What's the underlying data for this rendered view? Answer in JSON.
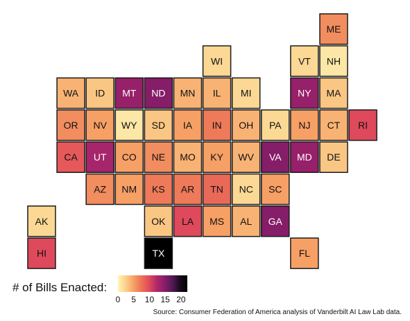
{
  "chart_data": {
    "type": "heatmap",
    "subtype": "state-tile-grid-map",
    "legend": {
      "title": "# of Bills Enacted:",
      "range": [
        0,
        22
      ],
      "ticks": [
        0,
        5,
        10,
        15,
        20
      ],
      "colors": [
        "#fdf6b8",
        "#fbd18c",
        "#f7a266",
        "#ec7457",
        "#e24c5b",
        "#b3296a",
        "#8c1d6a",
        "#551a5a",
        "#1b0c1d",
        "#000000"
      ]
    },
    "source": "Source: Consumer Federation of America analysis of Vanderbilt AI Law Lab data.",
    "states": [
      {
        "abbr": "ME",
        "col": 10,
        "row": 0,
        "value": 6
      },
      {
        "abbr": "WI",
        "col": 6,
        "row": 1,
        "value": 2
      },
      {
        "abbr": "VT",
        "col": 9,
        "row": 1,
        "value": 2
      },
      {
        "abbr": "NH",
        "col": 10,
        "row": 1,
        "value": 1
      },
      {
        "abbr": "WA",
        "col": 1,
        "row": 2,
        "value": 4
      },
      {
        "abbr": "ID",
        "col": 2,
        "row": 2,
        "value": 3
      },
      {
        "abbr": "MT",
        "col": 3,
        "row": 2,
        "value": 14
      },
      {
        "abbr": "ND",
        "col": 4,
        "row": 2,
        "value": 15
      },
      {
        "abbr": "MN",
        "col": 5,
        "row": 2,
        "value": 4
      },
      {
        "abbr": "IL",
        "col": 6,
        "row": 2,
        "value": 4
      },
      {
        "abbr": "MI",
        "col": 7,
        "row": 2,
        "value": 2
      },
      {
        "abbr": "NY",
        "col": 9,
        "row": 2,
        "value": 14
      },
      {
        "abbr": "MA",
        "col": 10,
        "row": 2,
        "value": 3
      },
      {
        "abbr": "OR",
        "col": 1,
        "row": 3,
        "value": 6
      },
      {
        "abbr": "NV",
        "col": 2,
        "row": 3,
        "value": 5
      },
      {
        "abbr": "WY",
        "col": 3,
        "row": 3,
        "value": 1
      },
      {
        "abbr": "SD",
        "col": 4,
        "row": 3,
        "value": 3
      },
      {
        "abbr": "IA",
        "col": 5,
        "row": 3,
        "value": 5
      },
      {
        "abbr": "IN",
        "col": 6,
        "row": 3,
        "value": 7
      },
      {
        "abbr": "OH",
        "col": 7,
        "row": 3,
        "value": 4
      },
      {
        "abbr": "PA",
        "col": 8,
        "row": 3,
        "value": 2
      },
      {
        "abbr": "NJ",
        "col": 9,
        "row": 3,
        "value": 5
      },
      {
        "abbr": "CT",
        "col": 10,
        "row": 3,
        "value": 4
      },
      {
        "abbr": "RI",
        "col": 11,
        "row": 3,
        "value": 10
      },
      {
        "abbr": "CA",
        "col": 1,
        "row": 4,
        "value": 9
      },
      {
        "abbr": "UT",
        "col": 2,
        "row": 4,
        "value": 13
      },
      {
        "abbr": "CO",
        "col": 3,
        "row": 4,
        "value": 5
      },
      {
        "abbr": "NE",
        "col": 4,
        "row": 4,
        "value": 6
      },
      {
        "abbr": "MO",
        "col": 5,
        "row": 4,
        "value": 4
      },
      {
        "abbr": "KY",
        "col": 6,
        "row": 4,
        "value": 5
      },
      {
        "abbr": "WV",
        "col": 7,
        "row": 4,
        "value": 4
      },
      {
        "abbr": "VA",
        "col": 8,
        "row": 4,
        "value": 15
      },
      {
        "abbr": "MD",
        "col": 9,
        "row": 4,
        "value": 14
      },
      {
        "abbr": "DE",
        "col": 10,
        "row": 4,
        "value": 3
      },
      {
        "abbr": "AZ",
        "col": 2,
        "row": 5,
        "value": 6
      },
      {
        "abbr": "NM",
        "col": 3,
        "row": 5,
        "value": 5
      },
      {
        "abbr": "KS",
        "col": 4,
        "row": 5,
        "value": 7
      },
      {
        "abbr": "AR",
        "col": 5,
        "row": 5,
        "value": 7
      },
      {
        "abbr": "TN",
        "col": 6,
        "row": 5,
        "value": 8
      },
      {
        "abbr": "NC",
        "col": 7,
        "row": 5,
        "value": 2
      },
      {
        "abbr": "SC",
        "col": 8,
        "row": 5,
        "value": 5
      },
      {
        "abbr": "AK",
        "col": 0,
        "row": 6,
        "value": 2
      },
      {
        "abbr": "OK",
        "col": 4,
        "row": 6,
        "value": 3
      },
      {
        "abbr": "LA",
        "col": 5,
        "row": 6,
        "value": 10
      },
      {
        "abbr": "MS",
        "col": 6,
        "row": 6,
        "value": 5
      },
      {
        "abbr": "AL",
        "col": 7,
        "row": 6,
        "value": 4
      },
      {
        "abbr": "GA",
        "col": 8,
        "row": 6,
        "value": 15
      },
      {
        "abbr": "HI",
        "col": 0,
        "row": 7,
        "value": 10
      },
      {
        "abbr": "TX",
        "col": 4,
        "row": 7,
        "value": 22
      },
      {
        "abbr": "FL",
        "col": 9,
        "row": 7,
        "value": 5
      }
    ]
  }
}
